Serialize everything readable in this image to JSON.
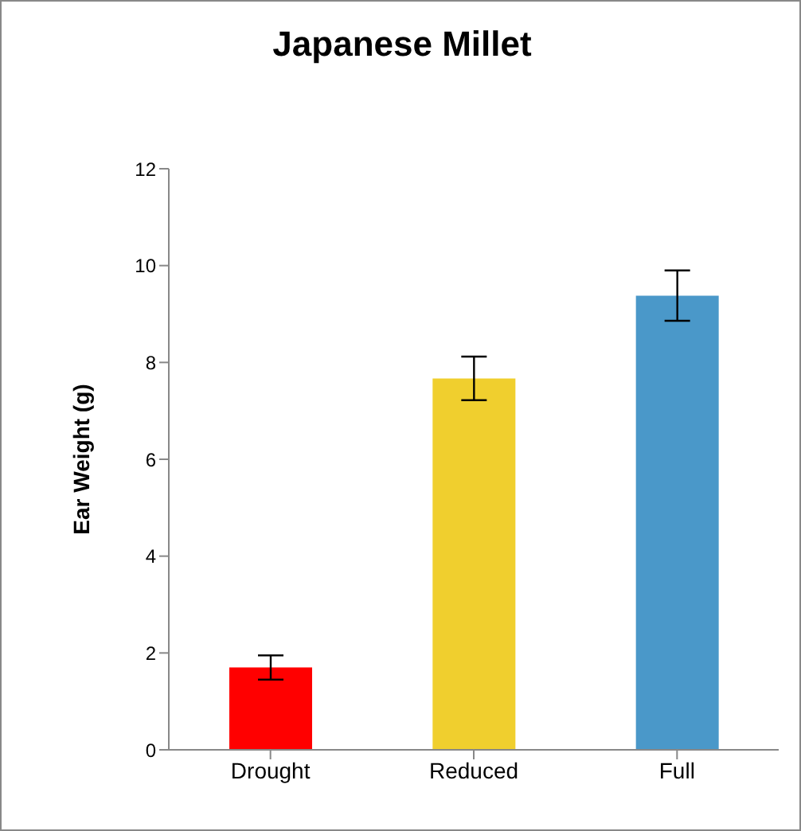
{
  "chart_data": {
    "type": "bar",
    "title": "Japanese Millet",
    "ylabel": "Ear Weight (g)",
    "categories": [
      "Drought",
      "Reduced",
      "Full"
    ],
    "values": [
      1.7,
      7.67,
      9.38
    ],
    "colors": [
      "#ff0000",
      "#f0cf2e",
      "#4a98c9"
    ],
    "errors": [
      0.25,
      0.45,
      0.52
    ],
    "ylim": [
      0,
      12
    ],
    "yticks": [
      0,
      2,
      4,
      6,
      8,
      10,
      12
    ],
    "grid": false,
    "legend": false
  }
}
